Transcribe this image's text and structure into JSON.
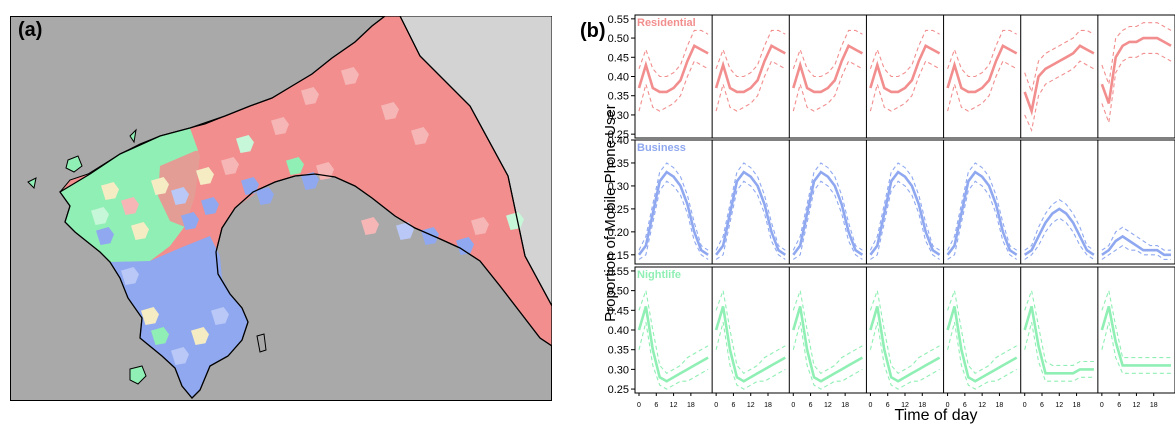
{
  "panel_a": {
    "label": "(a)",
    "colors": {
      "sea": "#a9a9a9",
      "unclassified_land": "#d3d3d3",
      "residential": "#f28e8e",
      "residential_light": "#f7b6b6",
      "business": "#8fa8f0",
      "business_light": "#b9c8f6",
      "nightlife": "#90efb4",
      "nightlife_light": "#c6f7d8",
      "mixed": "#f5ecc4",
      "outline": "#000000"
    }
  },
  "panel_b": {
    "label": "(b)",
    "ylabel": "Proportion of Mobile Phone User",
    "xlabel": "Time of day"
  },
  "chart_data": {
    "type": "line",
    "xlabel": "Time of day",
    "ylabel": "Proportion of Mobile Phone User",
    "x_ticks": [
      0,
      6,
      12,
      18
    ],
    "x_unit": "hour of day, 7 consecutive days",
    "band": "dashed lines show upper/lower bounds",
    "facets": [
      {
        "name": "Residential",
        "color": "#f28e8e",
        "ylim": [
          0.24,
          0.56
        ],
        "yticks": [
          0.25,
          0.3,
          0.35,
          0.4,
          0.45,
          0.5,
          0.55
        ],
        "days": [
          {
            "mean": [
              0.37,
              0.43,
              0.37,
              0.36,
              0.36,
              0.37,
              0.39,
              0.44,
              0.48,
              0.47,
              0.46
            ],
            "lower": [
              0.31,
              0.38,
              0.32,
              0.31,
              0.32,
              0.33,
              0.35,
              0.4,
              0.44,
              0.43,
              0.42
            ],
            "upper": [
              0.42,
              0.47,
              0.42,
              0.4,
              0.4,
              0.41,
              0.43,
              0.48,
              0.52,
              0.52,
              0.51
            ]
          },
          {
            "mean": [
              0.37,
              0.43,
              0.37,
              0.36,
              0.36,
              0.37,
              0.39,
              0.44,
              0.48,
              0.47,
              0.46
            ],
            "lower": [
              0.31,
              0.38,
              0.32,
              0.31,
              0.32,
              0.33,
              0.35,
              0.4,
              0.44,
              0.43,
              0.42
            ],
            "upper": [
              0.42,
              0.47,
              0.42,
              0.4,
              0.4,
              0.41,
              0.43,
              0.48,
              0.52,
              0.52,
              0.51
            ]
          },
          {
            "mean": [
              0.37,
              0.43,
              0.37,
              0.36,
              0.36,
              0.37,
              0.39,
              0.44,
              0.48,
              0.47,
              0.46
            ],
            "lower": [
              0.31,
              0.38,
              0.32,
              0.31,
              0.32,
              0.33,
              0.35,
              0.4,
              0.44,
              0.43,
              0.42
            ],
            "upper": [
              0.42,
              0.47,
              0.42,
              0.4,
              0.4,
              0.41,
              0.43,
              0.48,
              0.52,
              0.52,
              0.51
            ]
          },
          {
            "mean": [
              0.37,
              0.43,
              0.37,
              0.36,
              0.36,
              0.37,
              0.39,
              0.44,
              0.48,
              0.47,
              0.46
            ],
            "lower": [
              0.31,
              0.38,
              0.32,
              0.31,
              0.32,
              0.33,
              0.35,
              0.4,
              0.44,
              0.43,
              0.42
            ],
            "upper": [
              0.42,
              0.47,
              0.42,
              0.4,
              0.4,
              0.41,
              0.43,
              0.48,
              0.52,
              0.52,
              0.51
            ]
          },
          {
            "mean": [
              0.37,
              0.43,
              0.37,
              0.36,
              0.36,
              0.37,
              0.39,
              0.44,
              0.48,
              0.47,
              0.46
            ],
            "lower": [
              0.31,
              0.38,
              0.32,
              0.31,
              0.32,
              0.33,
              0.35,
              0.4,
              0.44,
              0.43,
              0.42
            ],
            "upper": [
              0.42,
              0.47,
              0.42,
              0.4,
              0.4,
              0.41,
              0.43,
              0.48,
              0.52,
              0.52,
              0.51
            ]
          },
          {
            "mean": [
              0.36,
              0.31,
              0.4,
              0.42,
              0.43,
              0.44,
              0.45,
              0.46,
              0.48,
              0.47,
              0.46
            ],
            "lower": [
              0.3,
              0.26,
              0.35,
              0.38,
              0.39,
              0.4,
              0.41,
              0.42,
              0.44,
              0.43,
              0.42
            ],
            "upper": [
              0.41,
              0.36,
              0.44,
              0.46,
              0.47,
              0.48,
              0.49,
              0.5,
              0.52,
              0.52,
              0.51
            ]
          },
          {
            "mean": [
              0.38,
              0.33,
              0.45,
              0.48,
              0.49,
              0.49,
              0.5,
              0.5,
              0.5,
              0.49,
              0.48
            ],
            "lower": [
              0.33,
              0.28,
              0.41,
              0.44,
              0.45,
              0.45,
              0.46,
              0.46,
              0.46,
              0.45,
              0.44
            ],
            "upper": [
              0.43,
              0.38,
              0.5,
              0.52,
              0.53,
              0.53,
              0.54,
              0.54,
              0.54,
              0.53,
              0.52
            ]
          }
        ]
      },
      {
        "name": "Business",
        "color": "#8fa8f0",
        "ylim": [
          0.13,
          0.4
        ],
        "yticks": [
          0.15,
          0.2,
          0.25,
          0.3,
          0.35,
          0.4
        ],
        "days": [
          {
            "mean": [
              0.15,
              0.17,
              0.24,
              0.31,
              0.33,
              0.32,
              0.3,
              0.26,
              0.2,
              0.16,
              0.15
            ],
            "lower": [
              0.14,
              0.15,
              0.22,
              0.29,
              0.31,
              0.3,
              0.28,
              0.24,
              0.18,
              0.15,
              0.14
            ],
            "upper": [
              0.16,
              0.19,
              0.26,
              0.33,
              0.35,
              0.34,
              0.32,
              0.28,
              0.22,
              0.17,
              0.16
            ]
          },
          {
            "mean": [
              0.15,
              0.17,
              0.24,
              0.31,
              0.33,
              0.32,
              0.3,
              0.26,
              0.2,
              0.16,
              0.15
            ],
            "lower": [
              0.14,
              0.15,
              0.22,
              0.29,
              0.31,
              0.3,
              0.28,
              0.24,
              0.18,
              0.15,
              0.14
            ],
            "upper": [
              0.16,
              0.19,
              0.26,
              0.33,
              0.35,
              0.34,
              0.32,
              0.28,
              0.22,
              0.17,
              0.16
            ]
          },
          {
            "mean": [
              0.15,
              0.17,
              0.24,
              0.31,
              0.33,
              0.32,
              0.3,
              0.26,
              0.2,
              0.16,
              0.15
            ],
            "lower": [
              0.14,
              0.15,
              0.22,
              0.29,
              0.31,
              0.3,
              0.28,
              0.24,
              0.18,
              0.15,
              0.14
            ],
            "upper": [
              0.16,
              0.19,
              0.26,
              0.33,
              0.35,
              0.34,
              0.32,
              0.28,
              0.22,
              0.17,
              0.16
            ]
          },
          {
            "mean": [
              0.15,
              0.17,
              0.24,
              0.31,
              0.33,
              0.32,
              0.3,
              0.26,
              0.2,
              0.16,
              0.15
            ],
            "lower": [
              0.14,
              0.15,
              0.22,
              0.29,
              0.31,
              0.3,
              0.28,
              0.24,
              0.18,
              0.15,
              0.14
            ],
            "upper": [
              0.16,
              0.19,
              0.26,
              0.33,
              0.35,
              0.34,
              0.32,
              0.28,
              0.22,
              0.17,
              0.16
            ]
          },
          {
            "mean": [
              0.15,
              0.17,
              0.24,
              0.31,
              0.33,
              0.32,
              0.3,
              0.26,
              0.2,
              0.16,
              0.15
            ],
            "lower": [
              0.14,
              0.15,
              0.22,
              0.29,
              0.31,
              0.3,
              0.28,
              0.24,
              0.18,
              0.15,
              0.14
            ],
            "upper": [
              0.16,
              0.19,
              0.26,
              0.33,
              0.35,
              0.34,
              0.32,
              0.28,
              0.22,
              0.17,
              0.16
            ]
          },
          {
            "mean": [
              0.15,
              0.16,
              0.19,
              0.22,
              0.24,
              0.25,
              0.24,
              0.22,
              0.19,
              0.16,
              0.15
            ],
            "lower": [
              0.14,
              0.15,
              0.17,
              0.2,
              0.22,
              0.23,
              0.22,
              0.2,
              0.17,
              0.15,
              0.14
            ],
            "upper": [
              0.16,
              0.17,
              0.21,
              0.24,
              0.26,
              0.27,
              0.26,
              0.24,
              0.21,
              0.17,
              0.16
            ]
          },
          {
            "mean": [
              0.15,
              0.16,
              0.18,
              0.19,
              0.18,
              0.17,
              0.16,
              0.16,
              0.16,
              0.15,
              0.15
            ],
            "lower": [
              0.14,
              0.15,
              0.16,
              0.17,
              0.16,
              0.16,
              0.15,
              0.15,
              0.15,
              0.14,
              0.14
            ],
            "upper": [
              0.16,
              0.17,
              0.2,
              0.21,
              0.2,
              0.19,
              0.18,
              0.17,
              0.17,
              0.16,
              0.16
            ]
          }
        ]
      },
      {
        "name": "Nightlife",
        "color": "#90efb4",
        "ylim": [
          0.24,
          0.56
        ],
        "yticks": [
          0.25,
          0.3,
          0.35,
          0.4,
          0.45,
          0.5,
          0.55
        ],
        "days": [
          {
            "mean": [
              0.4,
              0.46,
              0.35,
              0.28,
              0.27,
              0.28,
              0.29,
              0.3,
              0.31,
              0.32,
              0.33
            ],
            "lower": [
              0.35,
              0.42,
              0.31,
              0.26,
              0.25,
              0.26,
              0.27,
              0.27,
              0.28,
              0.29,
              0.3
            ],
            "upper": [
              0.45,
              0.5,
              0.4,
              0.31,
              0.29,
              0.3,
              0.31,
              0.33,
              0.34,
              0.35,
              0.36
            ]
          },
          {
            "mean": [
              0.4,
              0.46,
              0.35,
              0.28,
              0.27,
              0.28,
              0.29,
              0.3,
              0.31,
              0.32,
              0.33
            ],
            "lower": [
              0.35,
              0.42,
              0.31,
              0.26,
              0.25,
              0.26,
              0.27,
              0.27,
              0.28,
              0.29,
              0.3
            ],
            "upper": [
              0.45,
              0.5,
              0.4,
              0.31,
              0.29,
              0.3,
              0.31,
              0.33,
              0.34,
              0.35,
              0.36
            ]
          },
          {
            "mean": [
              0.4,
              0.46,
              0.35,
              0.28,
              0.27,
              0.28,
              0.29,
              0.3,
              0.31,
              0.32,
              0.33
            ],
            "lower": [
              0.35,
              0.42,
              0.31,
              0.26,
              0.25,
              0.26,
              0.27,
              0.27,
              0.28,
              0.29,
              0.3
            ],
            "upper": [
              0.45,
              0.5,
              0.4,
              0.31,
              0.29,
              0.3,
              0.31,
              0.33,
              0.34,
              0.35,
              0.36
            ]
          },
          {
            "mean": [
              0.4,
              0.46,
              0.35,
              0.28,
              0.27,
              0.28,
              0.29,
              0.3,
              0.31,
              0.32,
              0.33
            ],
            "lower": [
              0.35,
              0.42,
              0.31,
              0.26,
              0.25,
              0.26,
              0.27,
              0.27,
              0.28,
              0.29,
              0.3
            ],
            "upper": [
              0.45,
              0.5,
              0.4,
              0.31,
              0.29,
              0.3,
              0.31,
              0.33,
              0.34,
              0.35,
              0.36
            ]
          },
          {
            "mean": [
              0.4,
              0.46,
              0.35,
              0.28,
              0.27,
              0.28,
              0.29,
              0.3,
              0.31,
              0.32,
              0.33
            ],
            "lower": [
              0.35,
              0.42,
              0.31,
              0.26,
              0.25,
              0.26,
              0.27,
              0.27,
              0.28,
              0.29,
              0.3
            ],
            "upper": [
              0.45,
              0.5,
              0.4,
              0.31,
              0.29,
              0.3,
              0.31,
              0.33,
              0.34,
              0.35,
              0.36
            ]
          },
          {
            "mean": [
              0.4,
              0.46,
              0.36,
              0.29,
              0.29,
              0.29,
              0.29,
              0.29,
              0.3,
              0.3,
              0.3
            ],
            "lower": [
              0.35,
              0.42,
              0.32,
              0.27,
              0.27,
              0.27,
              0.27,
              0.27,
              0.28,
              0.28,
              0.28
            ],
            "upper": [
              0.45,
              0.5,
              0.41,
              0.32,
              0.31,
              0.31,
              0.31,
              0.31,
              0.32,
              0.32,
              0.32
            ]
          },
          {
            "mean": [
              0.4,
              0.46,
              0.37,
              0.31,
              0.31,
              0.31,
              0.31,
              0.31,
              0.31,
              0.31,
              0.31
            ],
            "lower": [
              0.35,
              0.42,
              0.33,
              0.29,
              0.29,
              0.29,
              0.29,
              0.29,
              0.29,
              0.29,
              0.29
            ],
            "upper": [
              0.45,
              0.5,
              0.41,
              0.33,
              0.33,
              0.33,
              0.33,
              0.33,
              0.33,
              0.33,
              0.33
            ]
          }
        ]
      }
    ]
  }
}
